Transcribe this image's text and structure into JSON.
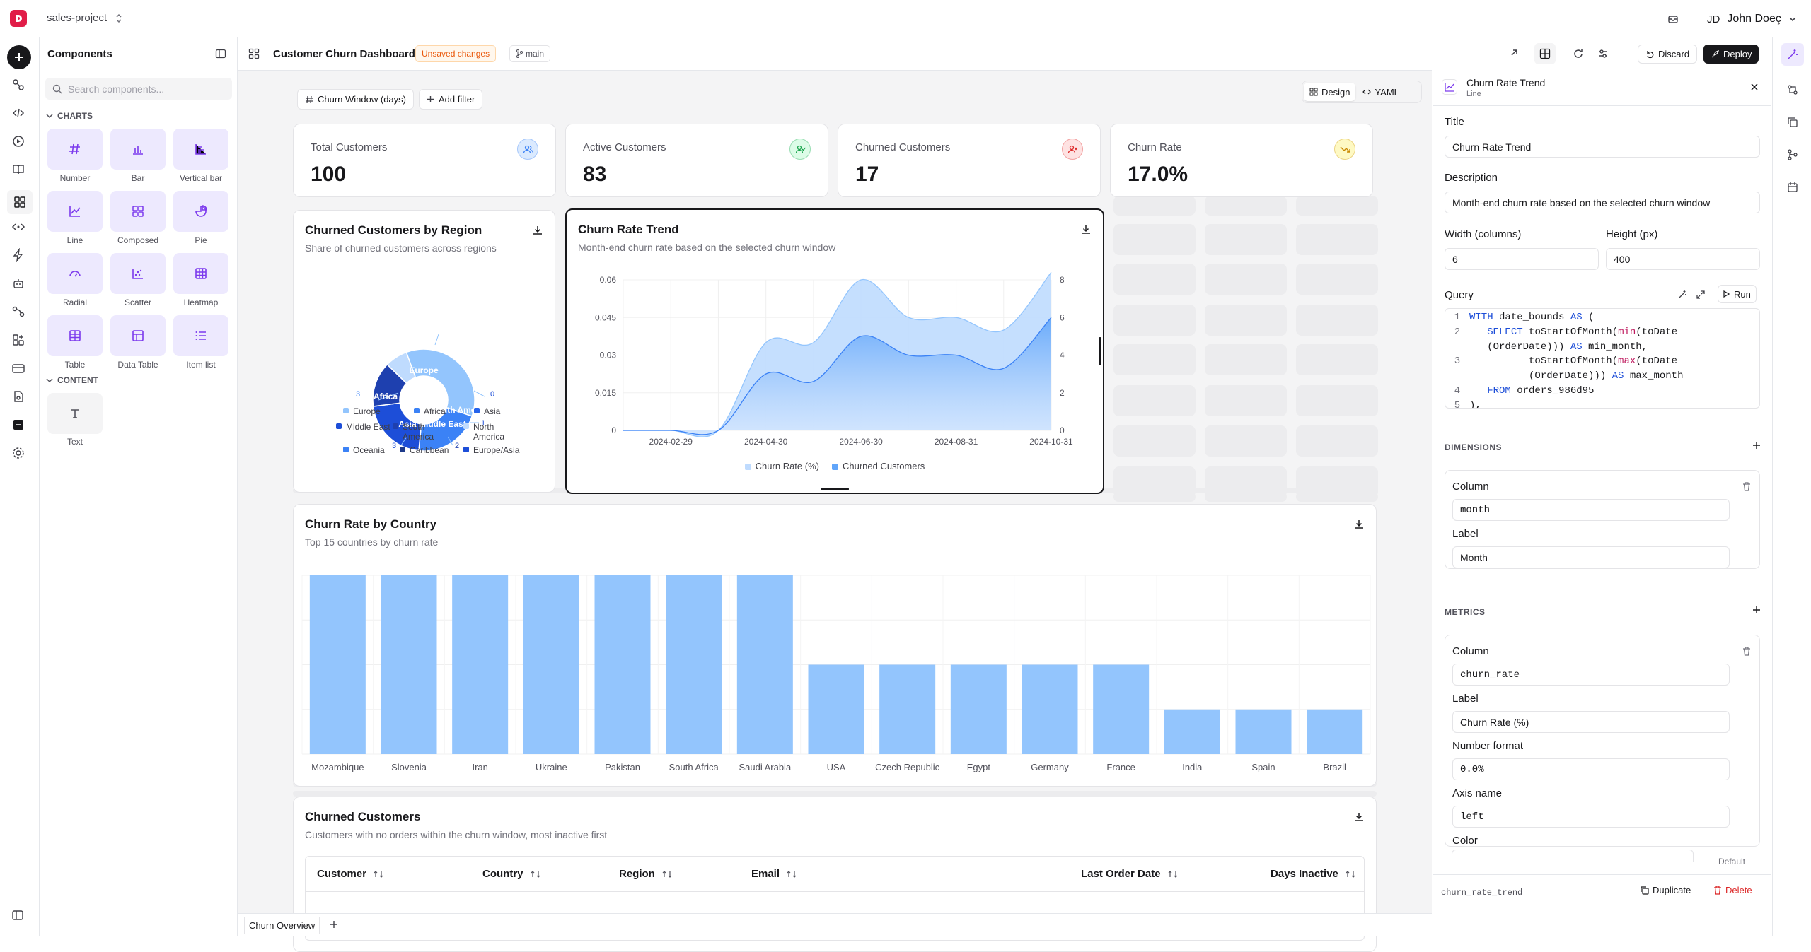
{
  "topbar": {
    "project": "sales-project",
    "user_initials": "JD",
    "user_name": "John Doeç"
  },
  "components_panel": {
    "title": "Components",
    "search_placeholder": "Search components...",
    "charts_section": "CHARTS",
    "content_section": "CONTENT",
    "charts": [
      {
        "label": "Number",
        "icon": "hash-icon"
      },
      {
        "label": "Bar",
        "icon": "bar-chart-icon"
      },
      {
        "label": "Vertical bar",
        "icon": "vertical-bar-icon"
      },
      {
        "label": "Line",
        "icon": "line-chart-icon"
      },
      {
        "label": "Composed",
        "icon": "composed-chart-icon"
      },
      {
        "label": "Pie",
        "icon": "pie-chart-icon"
      },
      {
        "label": "Radial",
        "icon": "gauge-icon"
      },
      {
        "label": "Scatter",
        "icon": "scatter-chart-icon"
      },
      {
        "label": "Heatmap",
        "icon": "grid-icon"
      },
      {
        "label": "Table",
        "icon": "table-icon"
      },
      {
        "label": "Data Table",
        "icon": "data-table-icon"
      },
      {
        "label": "Item list",
        "icon": "list-icon"
      }
    ],
    "content": [
      {
        "label": "Text",
        "icon": "text-icon"
      }
    ]
  },
  "dashboard": {
    "title": "Customer Churn Dashboard",
    "unsaved": "Unsaved changes",
    "branch": "main",
    "discard": "Discard",
    "deploy": "Deploy",
    "design_tab": "Design",
    "yaml_tab": "YAML",
    "filter_label": "Churn Window (days)",
    "add_filter": "Add filter",
    "kpis": [
      {
        "label": "Total Customers",
        "value": "100",
        "color": "#3b82f6",
        "bg": "#dbeafe"
      },
      {
        "label": "Active Customers",
        "value": "83",
        "color": "#16a34a",
        "bg": "#dcfce7"
      },
      {
        "label": "Churned Customers",
        "value": "17",
        "color": "#dc2626",
        "bg": "#fee2e2"
      },
      {
        "label": "Churn Rate",
        "value": "17.0%",
        "color": "#ca8a04",
        "bg": "#fef9c3"
      }
    ],
    "bottom_tab": "Churn Overview"
  },
  "region_card": {
    "title": "Churned Customers by Region",
    "subtitle": "Share of churned customers across regions",
    "slice_labels": [
      "Europe",
      "Africa",
      "South Ame",
      "Asia Middle East"
    ],
    "outer_labels": [
      "3",
      "0",
      "1",
      "2",
      "3"
    ]
  },
  "trend_card": {
    "title": "Churn Rate Trend",
    "subtitle": "Month-end churn rate based on the selected churn window"
  },
  "country_card": {
    "title": "Churn Rate by Country",
    "subtitle": "Top 15 countries by churn rate"
  },
  "churned_table": {
    "title": "Churned Customers",
    "subtitle": "Customers with no orders within the churn window, most inactive first",
    "columns": [
      "Customer",
      "Country",
      "Region",
      "Email",
      "Last Order Date",
      "Days Inactive"
    ]
  },
  "props": {
    "header_title": "Churn Rate Trend",
    "header_type": "Line",
    "title_label": "Title",
    "title_value": "Churn Rate Trend",
    "desc_label": "Description",
    "desc_value": "Month-end churn rate based on the selected churn window",
    "width_label": "Width (columns)",
    "width_value": "6",
    "height_label": "Height (px)",
    "height_value": "400",
    "query_label": "Query",
    "run": "Run",
    "dimensions": "DIMENSIONS",
    "dim_column_label": "Column",
    "dim_column_value": "month",
    "dim_label_label": "Label",
    "dim_label_value": "Month",
    "metrics": "METRICS",
    "met_column_label": "Column",
    "met_column_value": "churn_rate",
    "met_label_label": "Label",
    "met_label_value": "Churn Rate (%)",
    "numfmt_label": "Number format",
    "numfmt_value": "0.0%",
    "axis_label": "Axis name",
    "axis_value": "left",
    "color_label": "Color",
    "color_default": "Default",
    "footer_id": "churn_rate_trend",
    "duplicate": "Duplicate",
    "delete": "Delete"
  },
  "query_lines": [
    {
      "n": "1",
      "parts": [
        [
          "kw",
          "WITH"
        ],
        [
          "tx",
          " date_bounds "
        ],
        [
          "kw",
          "AS"
        ],
        [
          "tx",
          " ("
        ]
      ]
    },
    {
      "n": "2",
      "parts": [
        [
          "tx",
          "   "
        ],
        [
          "kw",
          "SELECT"
        ],
        [
          "tx",
          " toStartOfMonth("
        ],
        [
          "fn",
          "min"
        ],
        [
          "tx",
          "(toDate"
        ]
      ]
    },
    {
      "n": "",
      "parts": [
        [
          "tx",
          "   (OrderDate))) "
        ],
        [
          "kw",
          "AS"
        ],
        [
          "tx",
          " min_month,"
        ]
      ]
    },
    {
      "n": "3",
      "parts": [
        [
          "tx",
          "          toStartOfMonth("
        ],
        [
          "fn",
          "max"
        ],
        [
          "tx",
          "(toDate"
        ]
      ]
    },
    {
      "n": "",
      "parts": [
        [
          "tx",
          "          (OrderDate))) "
        ],
        [
          "kw",
          "AS"
        ],
        [
          "tx",
          " max_month"
        ]
      ]
    },
    {
      "n": "4",
      "parts": [
        [
          "tx",
          "   "
        ],
        [
          "kw",
          "FROM"
        ],
        [
          "tx",
          " orders_986d95"
        ]
      ]
    },
    {
      "n": "5",
      "parts": [
        [
          "tx",
          "),"
        ]
      ]
    }
  ],
  "chart_data": [
    {
      "type": "pie",
      "title": "Churned Customers by Region",
      "categories": [
        "Europe",
        "Africa",
        "Asia",
        "Middle East",
        "South America",
        "North America",
        "Oceania",
        "Caribbean",
        "Europe/Asia"
      ],
      "values": [
        5,
        3,
        0,
        3,
        2,
        1,
        0,
        0,
        0
      ],
      "colors": [
        "#93c5fd",
        "#3b82f6",
        "#2563eb",
        "#1d4ed8",
        "#1e40af",
        "#bfdbfe",
        "#3b82f6",
        "#1e3a8a",
        "#1d4ed8"
      ],
      "legend": "bottom"
    },
    {
      "type": "area",
      "title": "Churn Rate Trend",
      "x": [
        "2024-01-31",
        "2024-02-29",
        "2024-03-31",
        "2024-04-30",
        "2024-05-31",
        "2024-06-30",
        "2024-07-31",
        "2024-08-31",
        "2024-09-30",
        "2024-10-31"
      ],
      "x_tick_labels": [
        "2024-02-29",
        "2024-04-30",
        "2024-06-30",
        "2024-08-31",
        "2024-10-31"
      ],
      "series": [
        {
          "name": "Churn Rate (%)",
          "axis": "left",
          "color": "#bfdbfe",
          "values": [
            0,
            0,
            0,
            0.035,
            0.035,
            0.06,
            0.045,
            0.045,
            0.04,
            0.063
          ]
        },
        {
          "name": "Churned Customers",
          "axis": "right",
          "color": "#60a5fa",
          "values": [
            0,
            0,
            0,
            3,
            2.6,
            5,
            4,
            4,
            3.3,
            6
          ]
        }
      ],
      "ylim_left": [
        0,
        0.06
      ],
      "yticks_left": [
        "0",
        "0.015",
        "0.03",
        "0.045",
        "0.06"
      ],
      "ylim_right": [
        0,
        8
      ],
      "yticks_right": [
        "0",
        "2",
        "4",
        "6",
        "8"
      ],
      "legend": "bottom",
      "grid": true
    },
    {
      "type": "bar",
      "title": "Churn Rate by Country",
      "categories": [
        "Mozambique",
        "Slovenia",
        "Iran",
        "Ukraine",
        "Pakistan",
        "South Africa",
        "Saudi Arabia",
        "USA",
        "Czech Republic",
        "Egypt",
        "Germany",
        "France",
        "India",
        "Spain",
        "Brazil"
      ],
      "values": [
        1,
        1,
        1,
        1,
        1,
        1,
        1,
        0.5,
        0.5,
        0.5,
        0.5,
        0.5,
        0.25,
        0.25,
        0.25
      ],
      "ylim": [
        0,
        1
      ],
      "color": "#93c5fd",
      "grid": true
    }
  ]
}
